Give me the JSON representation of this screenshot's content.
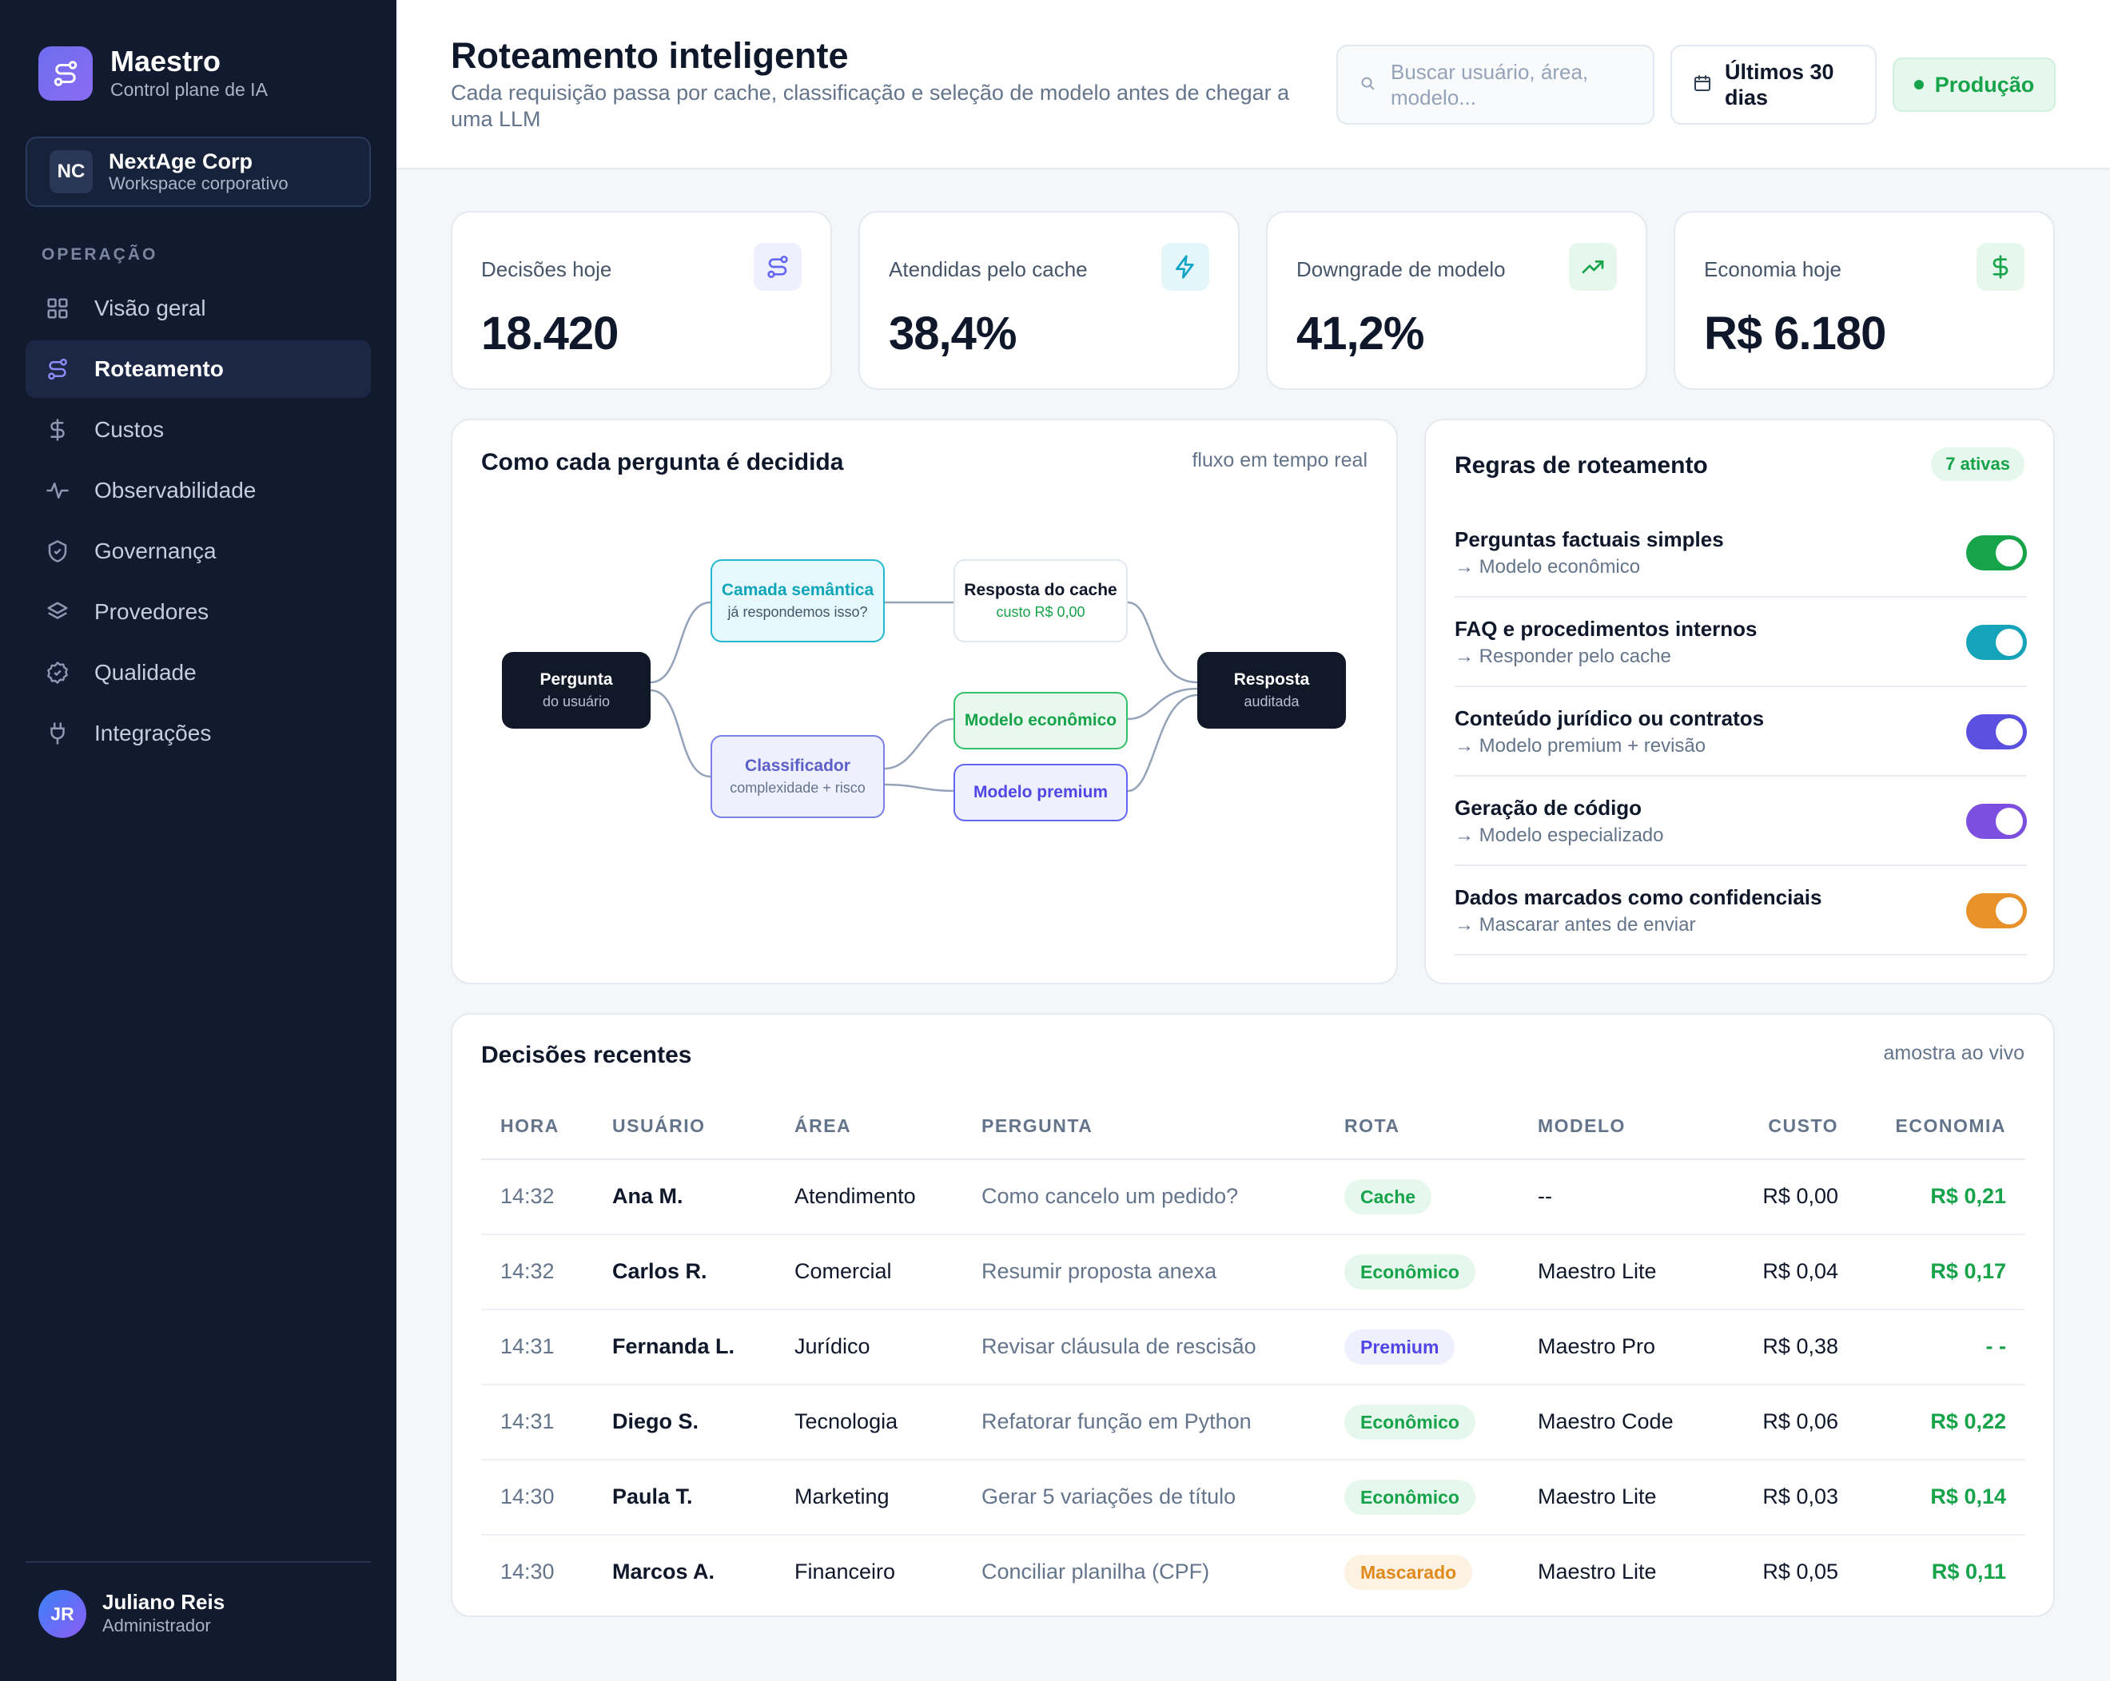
{
  "sidebar": {
    "brand_name": "Maestro",
    "brand_sub": "Control plane de IA",
    "workspace": {
      "initials": "NC",
      "name": "NextAge Corp",
      "sub": "Workspace corporativo"
    },
    "section_label": "OPERAÇÃO",
    "items": [
      {
        "label": "Visão geral",
        "icon": "grid-icon"
      },
      {
        "label": "Roteamento",
        "icon": "route-icon",
        "active": true
      },
      {
        "label": "Custos",
        "icon": "dollar-icon"
      },
      {
        "label": "Observabilidade",
        "icon": "activity-icon"
      },
      {
        "label": "Governança",
        "icon": "shield-icon"
      },
      {
        "label": "Provedores",
        "icon": "layers-icon"
      },
      {
        "label": "Qualidade",
        "icon": "badge-check-icon"
      },
      {
        "label": "Integrações",
        "icon": "plug-icon"
      }
    ],
    "user": {
      "initials": "JR",
      "name": "Juliano Reis",
      "role": "Administrador"
    }
  },
  "header": {
    "title": "Roteamento inteligente",
    "subtitle": "Cada requisição passa por cache, classificação e seleção de modelo antes de chegar a uma LLM",
    "search_placeholder": "Buscar usuário, área, modelo...",
    "date_range": "Últimos 30 dias",
    "environment": "Produção"
  },
  "stats": [
    {
      "label": "Decisões hoje",
      "value": "18.420",
      "icon": "route-icon",
      "color": "#6366f1",
      "bg": "#eef0fd"
    },
    {
      "label": "Atendidas pelo cache",
      "value": "38,4%",
      "icon": "lightning-icon",
      "color": "#0ea5c6",
      "bg": "#e4f6fa"
    },
    {
      "label": "Downgrade de modelo",
      "value": "41,2%",
      "icon": "trending-up-icon",
      "color": "#16a34a",
      "bg": "#e6f7ee"
    },
    {
      "label": "Economia hoje",
      "value": "R$ 6.180",
      "icon": "dollar-icon",
      "color": "#16a34a",
      "bg": "#e6f7ee"
    }
  ],
  "flow": {
    "title": "Como cada pergunta é decidida",
    "meta": "fluxo em tempo real",
    "nodes": {
      "question": {
        "title": "Pergunta",
        "sub": "do usuário"
      },
      "semantic": {
        "title": "Camada semântica",
        "sub": "já respondemos isso?"
      },
      "cache": {
        "title": "Resposta do cache",
        "sub": "custo R$ 0,00"
      },
      "classifier": {
        "title": "Classificador",
        "sub": "complexidade + risco"
      },
      "economic": {
        "title": "Modelo econômico"
      },
      "premium": {
        "title": "Modelo premium"
      },
      "answer": {
        "title": "Resposta",
        "sub": "auditada"
      }
    }
  },
  "rules": {
    "title": "Regras de roteamento",
    "active_count": "7 ativas",
    "items": [
      {
        "title": "Perguntas factuais simples",
        "action": "→ Modelo econômico",
        "enabled": true,
        "color": "#16a34a"
      },
      {
        "title": "FAQ e procedimentos internos",
        "action": "→ Responder pelo cache",
        "enabled": true,
        "color": "#14a3b8"
      },
      {
        "title": "Conteúdo jurídico ou contratos",
        "action": "→ Modelo premium + revisão",
        "enabled": true,
        "color": "#5b4fe0"
      },
      {
        "title": "Geração de código",
        "action": "→ Modelo especializado",
        "enabled": true,
        "color": "#7c4fe0"
      },
      {
        "title": "Dados marcados como confidenciais",
        "action": "→ Mascarar antes de enviar",
        "enabled": true,
        "color": "#e8902a"
      }
    ]
  },
  "decisions": {
    "title": "Decisões recentes",
    "meta": "amostra ao vivo",
    "columns": [
      "HORA",
      "USUÁRIO",
      "ÁREA",
      "PERGUNTA",
      "ROTA",
      "MODELO",
      "CUSTO",
      "ECONOMIA"
    ],
    "rows": [
      {
        "time": "14:32",
        "user": "Ana M.",
        "area": "Atendimento",
        "question": "Como cancelo um pedido?",
        "route": "Cache",
        "route_kind": "cache",
        "model": "--",
        "cost": "R$ 0,00",
        "saving": "R$ 0,21"
      },
      {
        "time": "14:32",
        "user": "Carlos R.",
        "area": "Comercial",
        "question": "Resumir proposta anexa",
        "route": "Econômico",
        "route_kind": "econ",
        "model": "Maestro Lite",
        "cost": "R$ 0,04",
        "saving": "R$ 0,17"
      },
      {
        "time": "14:31",
        "user": "Fernanda L.",
        "area": "Jurídico",
        "question": "Revisar cláusula de rescisão",
        "route": "Premium",
        "route_kind": "premium",
        "model": "Maestro Pro",
        "cost": "R$ 0,38",
        "saving": "- -"
      },
      {
        "time": "14:31",
        "user": "Diego S.",
        "area": "Tecnologia",
        "question": "Refatorar função em Python",
        "route": "Econômico",
        "route_kind": "econ",
        "model": "Maestro Code",
        "cost": "R$ 0,06",
        "saving": "R$ 0,22"
      },
      {
        "time": "14:30",
        "user": "Paula T.",
        "area": "Marketing",
        "question": "Gerar 5 variações de título",
        "route": "Econômico",
        "route_kind": "econ",
        "model": "Maestro Lite",
        "cost": "R$ 0,03",
        "saving": "R$ 0,14"
      },
      {
        "time": "14:30",
        "user": "Marcos A.",
        "area": "Financeiro",
        "question": "Conciliar planilha (CPF)",
        "route": "Mascarado",
        "route_kind": "masked",
        "model": "Maestro Lite",
        "cost": "R$ 0,05",
        "saving": "R$ 0,11"
      }
    ]
  }
}
